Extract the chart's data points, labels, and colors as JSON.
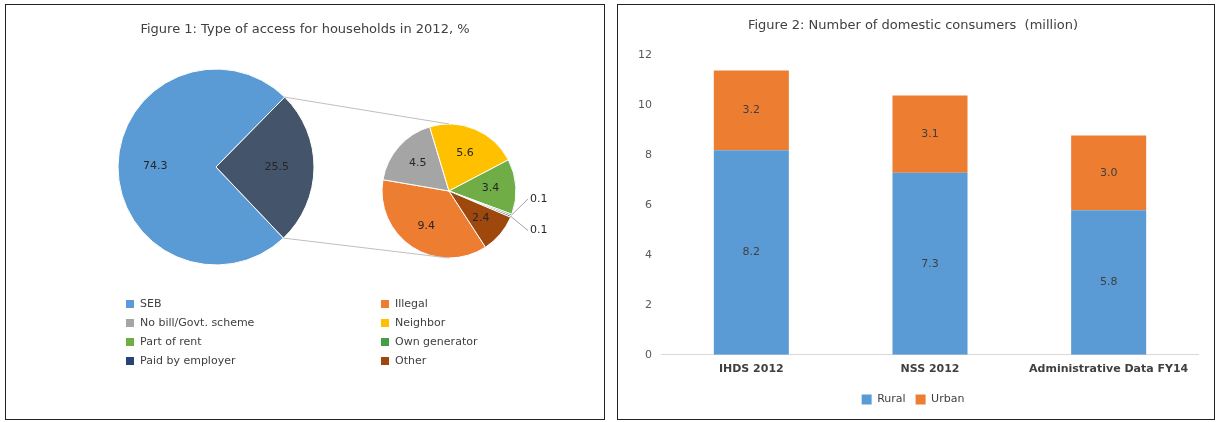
{
  "chart_data": [
    {
      "type": "pie",
      "title": "Figure 1: Type of access for households in 2012, %",
      "categories": [
        "SEB",
        null
      ],
      "values": [
        74.3,
        25.5
      ],
      "colors": [
        "#5b9bd5",
        "#44546a"
      ],
      "data_labels": true,
      "legend": "bottom"
    },
    {
      "type": "pie",
      "categories": [
        "Illegal",
        "No bill/Govt. scheme",
        "Neighbor",
        "Part of rent",
        "Own generator",
        "Paid by employer",
        "Other"
      ],
      "values": [
        9.4,
        4.5,
        5.6,
        3.4,
        0.1,
        0.1,
        2.4
      ],
      "colors": [
        "#ed7d31",
        "#a5a5a5",
        "#ffc000",
        "#70ad47",
        "#43a047",
        "#264478",
        "#9e480e"
      ],
      "data_labels": true,
      "legend": "bottom"
    },
    {
      "type": "bar",
      "title": "Figure 2: Number of domestic consumers  (million)",
      "categories": [
        "IHDS 2012",
        "NSS 2012",
        "Administrative Data FY14"
      ],
      "stacked": true,
      "ylim": [
        0,
        12
      ],
      "yticks": [
        0,
        2,
        4,
        6,
        8,
        10,
        12
      ],
      "legend": "bottom",
      "series": [
        {
          "name": "Rural",
          "color": "#5b9bd5",
          "values": [
            8.2,
            7.3,
            5.8
          ],
          "value_labels": [
            "8.2",
            "7.3",
            "5.8"
          ]
        },
        {
          "name": "Urban",
          "color": "#ed7d31",
          "values": [
            3.2,
            3.1,
            3.0
          ],
          "value_labels": [
            "3.2",
            "3.1",
            "3.0"
          ]
        }
      ]
    }
  ]
}
